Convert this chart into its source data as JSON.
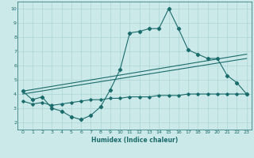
{
  "xlabel": "Humidex (Indice chaleur)",
  "background_color": "#cce9e9",
  "grid_color": "#aad4d4",
  "line_color": "#1a6b6b",
  "xlim": [
    -0.5,
    23.5
  ],
  "ylim": [
    1.5,
    10.5
  ],
  "xticks": [
    0,
    1,
    2,
    3,
    4,
    5,
    6,
    7,
    8,
    9,
    10,
    11,
    12,
    13,
    14,
    15,
    16,
    17,
    18,
    19,
    20,
    21,
    22,
    23
  ],
  "yticks": [
    2,
    3,
    4,
    5,
    6,
    7,
    8,
    9,
    10
  ],
  "line1_x": [
    0,
    1,
    2,
    3,
    4,
    5,
    6,
    7,
    8,
    9,
    10,
    11,
    12,
    13,
    14,
    15,
    16,
    17,
    18,
    19,
    20,
    21,
    22,
    23
  ],
  "line1_y": [
    4.2,
    3.6,
    3.8,
    3.0,
    2.8,
    2.4,
    2.2,
    2.5,
    3.1,
    4.3,
    5.7,
    8.3,
    8.4,
    8.6,
    8.6,
    10.0,
    8.6,
    7.1,
    6.8,
    6.5,
    6.5,
    5.3,
    4.8,
    4.0
  ],
  "line2_x": [
    0,
    23
  ],
  "line2_y": [
    4.2,
    6.8
  ],
  "line3_x": [
    0,
    23
  ],
  "line3_y": [
    4.0,
    6.5
  ],
  "line4_x": [
    0,
    1,
    2,
    3,
    4,
    5,
    6,
    7,
    8,
    9,
    10,
    11,
    12,
    13,
    14,
    15,
    16,
    17,
    18,
    19,
    20,
    21,
    22,
    23
  ],
  "line4_y": [
    3.5,
    3.3,
    3.4,
    3.2,
    3.3,
    3.4,
    3.5,
    3.6,
    3.6,
    3.7,
    3.7,
    3.8,
    3.8,
    3.8,
    3.9,
    3.9,
    3.9,
    4.0,
    4.0,
    4.0,
    4.0,
    4.0,
    4.0,
    4.0
  ]
}
